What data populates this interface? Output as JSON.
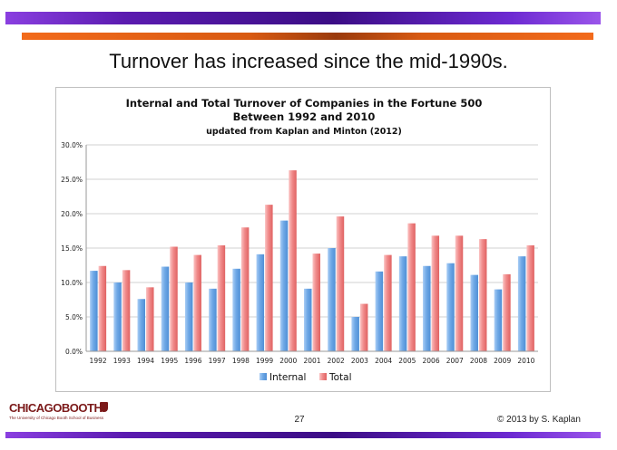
{
  "slide": {
    "title": "Turnover has increased since the mid-1990s.",
    "page_number": "27",
    "copyright": "© 2013 by S. Kaplan",
    "logo_text": "CHICAGOBOOTH",
    "logo_subtext": "The University of Chicago Booth School of Business"
  },
  "colors": {
    "internal": "#6fa8e6",
    "total": "#f08a8a"
  },
  "chart_data": {
    "type": "bar",
    "title_lines": [
      "Internal and Total Turnover of Companies in the Fortune 500",
      "Between 1992 and 2010",
      "updated from Kaplan and Minton (2012)"
    ],
    "categories": [
      "1992",
      "1993",
      "1994",
      "1995",
      "1996",
      "1997",
      "1998",
      "1999",
      "2000",
      "2001",
      "2002",
      "2003",
      "2004",
      "2005",
      "2006",
      "2007",
      "2008",
      "2009",
      "2010"
    ],
    "series": [
      {
        "name": "Internal",
        "values": [
          11.7,
          10.0,
          7.6,
          12.3,
          10.0,
          9.1,
          12.0,
          14.1,
          19.0,
          9.1,
          15.0,
          5.0,
          11.6,
          13.8,
          12.4,
          12.8,
          11.1,
          9.0,
          13.8
        ]
      },
      {
        "name": "Total",
        "values": [
          12.4,
          11.8,
          9.3,
          15.2,
          14.0,
          15.4,
          18.0,
          21.3,
          26.3,
          14.2,
          19.6,
          6.9,
          14.0,
          18.6,
          16.8,
          16.8,
          16.3,
          11.2,
          15.4
        ]
      }
    ],
    "ylim": [
      0,
      30
    ],
    "yticks": [
      "0.0%",
      "5.0%",
      "10.0%",
      "15.0%",
      "20.0%",
      "25.0%",
      "30.0%"
    ],
    "grid": true,
    "legend_position": "bottom"
  }
}
